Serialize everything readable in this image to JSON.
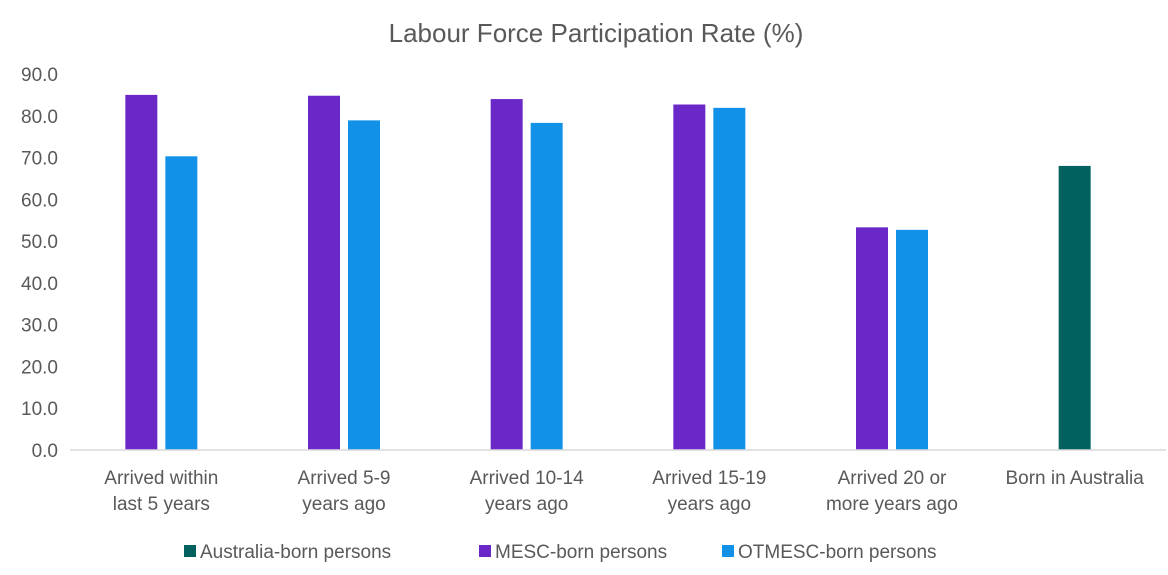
{
  "chart_data": {
    "type": "bar",
    "title": "Labour Force Participation Rate (%)",
    "xlabel": "",
    "ylabel": "",
    "ylim": [
      0,
      90
    ],
    "y_ticks": [
      "0.0",
      "10.0",
      "20.0",
      "30.0",
      "40.0",
      "50.0",
      "60.0",
      "70.0",
      "80.0",
      "90.0"
    ],
    "grid": false,
    "legend_position": "bottom",
    "categories": [
      [
        "Arrived within",
        "last 5 years"
      ],
      [
        "Arrived 5-9",
        "years ago"
      ],
      [
        "Arrived 10-14",
        "years ago"
      ],
      [
        "Arrived 15-19",
        "years ago"
      ],
      [
        "Arrived 20 or",
        "more years ago"
      ],
      [
        "Born in Australia"
      ]
    ],
    "series": [
      {
        "name": "Australia-born persons",
        "color": "#01615f",
        "values": [
          null,
          null,
          null,
          null,
          null,
          68.0
        ]
      },
      {
        "name": "MESC-born persons",
        "color": "#6a28c8",
        "values": [
          85.0,
          84.8,
          84.0,
          82.7,
          53.3,
          null
        ]
      },
      {
        "name": "OTMESC-born persons",
        "color": "#1291e8",
        "values": [
          70.3,
          78.9,
          78.3,
          81.9,
          52.7,
          null
        ]
      }
    ]
  }
}
